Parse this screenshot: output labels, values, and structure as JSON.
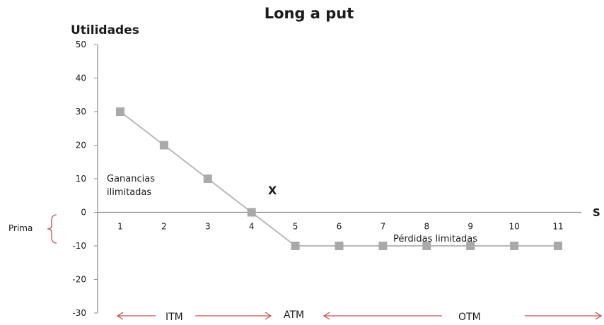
{
  "chart_data": {
    "type": "line",
    "title": "Long a put",
    "ylabel": "Utilidades",
    "xlabel": "S",
    "categories": [
      "1",
      "2",
      "3",
      "4",
      "5",
      "6",
      "7",
      "8",
      "9",
      "10",
      "11"
    ],
    "series": [
      {
        "values": [
          30,
          20,
          10,
          0,
          -10,
          -10,
          -10,
          -10,
          -10,
          -10,
          -10
        ]
      }
    ],
    "ylim": [
      -30,
      50
    ],
    "yticks": [
      50,
      40,
      30,
      20,
      10,
      0,
      -10,
      -20,
      -30
    ],
    "grid": false,
    "annotations": {
      "gains": "Ganancias ilimitadas",
      "gains_line1": "Ganancias",
      "gains_line2": "ilimitadas",
      "losses": "Pérdidas limitadas",
      "strike": "X",
      "premium": "Prima"
    },
    "zones": [
      "ITM",
      "ATM",
      "OTM"
    ],
    "colors": {
      "line": "#b8b8b8",
      "marker": "#a9a9a9",
      "axis": "#8c8c8c",
      "arrow": "#c0504d",
      "text": "#1a1a1a"
    }
  }
}
